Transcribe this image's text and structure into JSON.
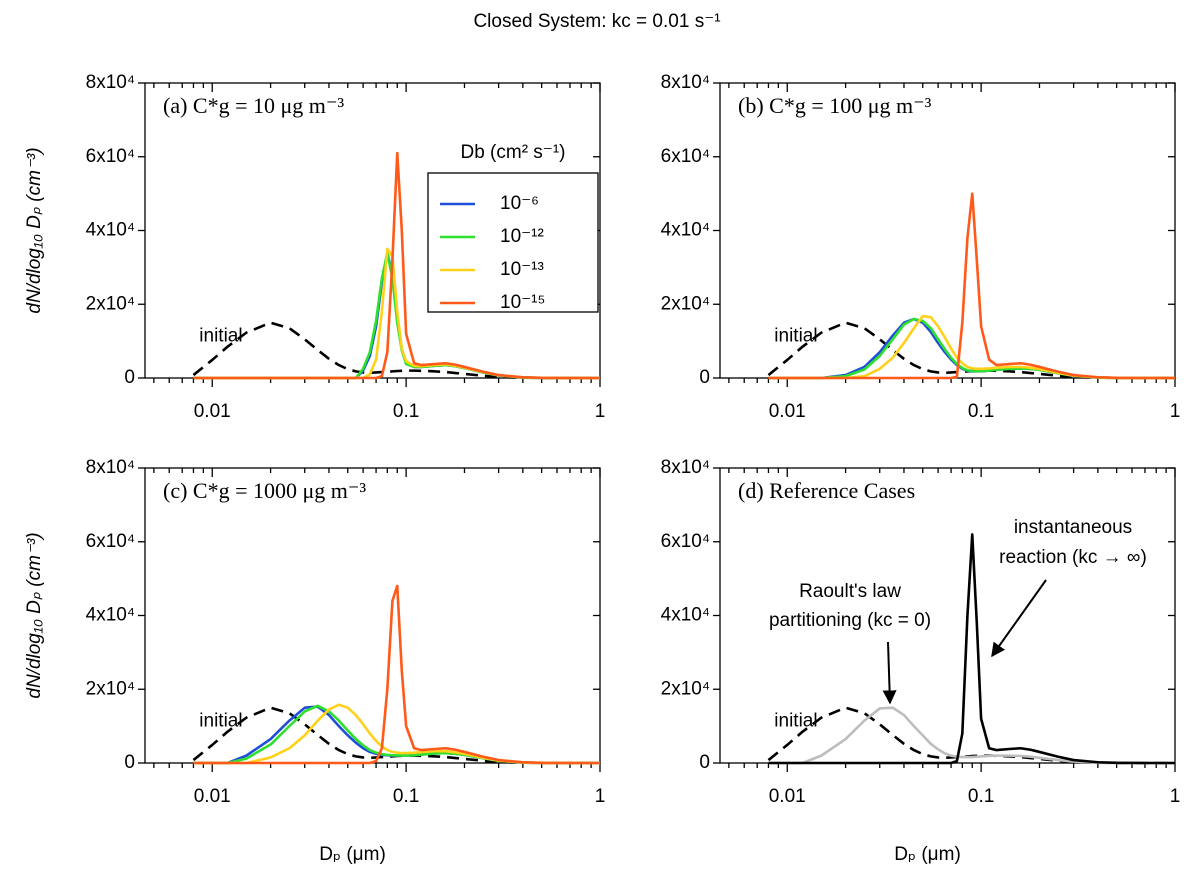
{
  "title": "Closed System: kc = 0.01 s⁻¹",
  "chart_data": [
    {
      "type": "line",
      "xscale": "log",
      "label": "(a) C*g = 10 μg m⁻³",
      "ylabel": "dN/dlog₁₀ Dₚ (cm⁻³)",
      "legend": true,
      "legend_title": "Db (cm² s⁻¹)",
      "xlim": [
        0.0045,
        1
      ],
      "xticks": [
        0.01,
        0.1,
        1
      ],
      "xminorticks": [
        0.005,
        0.006,
        0.007,
        0.008,
        0.009,
        0.02,
        0.03,
        0.04,
        0.05,
        0.06,
        0.07,
        0.08,
        0.09,
        0.2,
        0.3,
        0.4,
        0.5,
        0.6,
        0.7,
        0.8,
        0.9
      ],
      "ylim": [
        0,
        80000
      ],
      "yticks": [
        0,
        {
          "value": 20000,
          "label": "2x10⁴"
        },
        {
          "value": 40000,
          "label": "4x10⁴"
        },
        {
          "value": 60000,
          "label": "6x10⁴"
        },
        {
          "value": 80000,
          "label": "8x10⁴"
        }
      ],
      "x": [
        0.008,
        0.01,
        0.012,
        0.015,
        0.02,
        0.025,
        0.03,
        0.035,
        0.04,
        0.045,
        0.05,
        0.055,
        0.06,
        0.065,
        0.07,
        0.075,
        0.08,
        0.085,
        0.09,
        0.095,
        0.1,
        0.11,
        0.12,
        0.14,
        0.16,
        0.18,
        0.2,
        0.25,
        0.3,
        0.4,
        0.5,
        0.7,
        1
      ],
      "series": [
        {
          "name": "initial",
          "color": "#000000",
          "dash": true,
          "values": [
            800,
            4900,
            8500,
            12300,
            15000,
            13500,
            10500,
            7600,
            5200,
            3500,
            2400,
            1800,
            1500,
            1400,
            1500,
            1600,
            1700,
            1800,
            1900,
            1950,
            2000,
            2000,
            1950,
            1800,
            1600,
            1350,
            1100,
            600,
            300,
            80,
            20,
            0,
            0
          ]
        },
        {
          "name": "10⁻⁶",
          "color": "#1f4ed8",
          "values": [
            0,
            0,
            0,
            0,
            0,
            0,
            0,
            0,
            0,
            0,
            0,
            0,
            2000,
            6000,
            14000,
            26000,
            34000,
            28000,
            16000,
            8000,
            4000,
            3000,
            3000,
            3300,
            3500,
            3200,
            2700,
            1500,
            700,
            150,
            30,
            0,
            0
          ]
        },
        {
          "name": "10⁻¹²",
          "color": "#2ee02e",
          "values": [
            0,
            0,
            0,
            0,
            0,
            0,
            0,
            0,
            0,
            0,
            0,
            0,
            2500,
            7000,
            15500,
            27000,
            34000,
            27000,
            15000,
            7500,
            3800,
            3000,
            3000,
            3300,
            3500,
            3200,
            2700,
            1500,
            700,
            150,
            30,
            0,
            0
          ]
        },
        {
          "name": "10⁻¹³",
          "color": "#ffd11a",
          "values": [
            0,
            0,
            0,
            0,
            0,
            0,
            0,
            0,
            0,
            0,
            0,
            0,
            0,
            1000,
            5000,
            18000,
            35000,
            33000,
            18000,
            8000,
            4500,
            3300,
            3200,
            3500,
            3700,
            3300,
            2800,
            1600,
            750,
            170,
            35,
            0,
            0
          ]
        },
        {
          "name": "10⁻¹⁵",
          "color": "#ff5a1a",
          "values": [
            0,
            0,
            0,
            0,
            0,
            0,
            0,
            0,
            0,
            0,
            0,
            0,
            0,
            0,
            0,
            500,
            7000,
            32000,
            61000,
            40000,
            12000,
            4000,
            3500,
            3800,
            4000,
            3600,
            3000,
            1700,
            800,
            200,
            40,
            0,
            0
          ]
        }
      ]
    },
    {
      "type": "line",
      "xscale": "log",
      "label": "(b) C*g = 100 μg m⁻³",
      "xlim": [
        0.0045,
        1
      ],
      "xticks": [
        0.01,
        0.1,
        1
      ],
      "xminorticks": [
        0.005,
        0.006,
        0.007,
        0.008,
        0.009,
        0.02,
        0.03,
        0.04,
        0.05,
        0.06,
        0.07,
        0.08,
        0.09,
        0.2,
        0.3,
        0.4,
        0.5,
        0.6,
        0.7,
        0.8,
        0.9
      ],
      "ylim": [
        0,
        80000
      ],
      "yticks": [
        0,
        {
          "value": 20000,
          "label": "2x10⁴"
        },
        {
          "value": 40000,
          "label": "4x10⁴"
        },
        {
          "value": 60000,
          "label": "6x10⁴"
        },
        {
          "value": 80000,
          "label": "8x10⁴"
        }
      ],
      "x": [
        0.008,
        0.01,
        0.012,
        0.015,
        0.02,
        0.025,
        0.03,
        0.035,
        0.04,
        0.045,
        0.05,
        0.055,
        0.06,
        0.065,
        0.07,
        0.075,
        0.08,
        0.085,
        0.09,
        0.095,
        0.1,
        0.11,
        0.12,
        0.14,
        0.16,
        0.18,
        0.2,
        0.25,
        0.3,
        0.4,
        0.5,
        0.7,
        1
      ],
      "series": [
        {
          "name": "initial",
          "color": "#000000",
          "dash": true,
          "values": [
            800,
            4900,
            8500,
            12300,
            15000,
            13500,
            10500,
            7600,
            5200,
            3500,
            2400,
            1800,
            1500,
            1400,
            1500,
            1600,
            1700,
            1800,
            1900,
            1950,
            2000,
            2000,
            1950,
            1800,
            1600,
            1350,
            1100,
            600,
            300,
            80,
            20,
            0,
            0
          ]
        },
        {
          "color": "#1f4ed8",
          "values": [
            0,
            0,
            0,
            0,
            800,
            3000,
            7000,
            11500,
            15000,
            16000,
            15000,
            12500,
            9500,
            7000,
            5000,
            3500,
            2500,
            2000,
            1800,
            1800,
            1800,
            2000,
            2200,
            2500,
            2600,
            2500,
            2200,
            1300,
            600,
            150,
            30,
            0,
            0
          ]
        },
        {
          "color": "#2ee02e",
          "values": [
            0,
            0,
            0,
            0,
            500,
            2300,
            6000,
            10500,
            14500,
            16000,
            15500,
            13500,
            10500,
            7800,
            5500,
            3800,
            2700,
            2100,
            1900,
            1850,
            1850,
            2000,
            2200,
            2500,
            2600,
            2500,
            2200,
            1300,
            600,
            150,
            30,
            0,
            0
          ]
        },
        {
          "color": "#ffd11a",
          "values": [
            0,
            0,
            0,
            0,
            0,
            500,
            2500,
            5500,
            9500,
            13500,
            16800,
            16500,
            14000,
            11000,
            8000,
            5500,
            4000,
            3000,
            2600,
            2500,
            2500,
            2600,
            2800,
            3000,
            3000,
            2800,
            2400,
            1400,
            650,
            150,
            30,
            0,
            0
          ]
        },
        {
          "color": "#ff5a1a",
          "values": [
            0,
            0,
            0,
            0,
            0,
            0,
            0,
            0,
            0,
            0,
            0,
            0,
            0,
            0,
            0,
            300,
            15000,
            38000,
            50000,
            32000,
            14000,
            5000,
            3500,
            3800,
            4000,
            3600,
            3000,
            1700,
            800,
            200,
            40,
            0,
            0
          ]
        }
      ]
    },
    {
      "type": "line",
      "xscale": "log",
      "label": "(c) C*g = 1000 μg m⁻³",
      "ylabel": "dN/dlog₁₀ Dₚ (cm⁻³)",
      "xlabel": "Dₚ (μm)",
      "xlim": [
        0.0045,
        1
      ],
      "xticks": [
        0.01,
        0.1,
        1
      ],
      "xminorticks": [
        0.005,
        0.006,
        0.007,
        0.008,
        0.009,
        0.02,
        0.03,
        0.04,
        0.05,
        0.06,
        0.07,
        0.08,
        0.09,
        0.2,
        0.3,
        0.4,
        0.5,
        0.6,
        0.7,
        0.8,
        0.9
      ],
      "ylim": [
        0,
        80000
      ],
      "yticks": [
        0,
        {
          "value": 20000,
          "label": "2x10⁴"
        },
        {
          "value": 40000,
          "label": "4x10⁴"
        },
        {
          "value": 60000,
          "label": "6x10⁴"
        },
        {
          "value": 80000,
          "label": "8x10⁴"
        }
      ],
      "x": [
        0.008,
        0.01,
        0.012,
        0.015,
        0.02,
        0.025,
        0.03,
        0.035,
        0.04,
        0.045,
        0.05,
        0.055,
        0.06,
        0.065,
        0.07,
        0.075,
        0.08,
        0.085,
        0.09,
        0.095,
        0.1,
        0.11,
        0.12,
        0.14,
        0.16,
        0.18,
        0.2,
        0.25,
        0.3,
        0.4,
        0.5,
        0.7,
        1
      ],
      "series": [
        {
          "name": "initial",
          "color": "#000000",
          "dash": true,
          "values": [
            800,
            4900,
            8500,
            12300,
            15000,
            13500,
            10500,
            7600,
            5200,
            3500,
            2400,
            1800,
            1500,
            1400,
            1500,
            1600,
            1700,
            1800,
            1900,
            1950,
            2000,
            2000,
            1950,
            1800,
            1600,
            1350,
            1100,
            600,
            300,
            80,
            20,
            0,
            0
          ]
        },
        {
          "color": "#1f4ed8",
          "values": [
            0,
            0,
            0,
            2000,
            6500,
            11500,
            15000,
            15300,
            13000,
            10000,
            7500,
            5500,
            4000,
            3000,
            2500,
            2200,
            2100,
            2000,
            2000,
            2000,
            2000,
            2100,
            2300,
            2600,
            2700,
            2500,
            2200,
            1300,
            600,
            150,
            30,
            0,
            0
          ]
        },
        {
          "color": "#2ee02e",
          "values": [
            0,
            0,
            0,
            1200,
            5000,
            10000,
            14000,
            15500,
            14000,
            11500,
            8800,
            6500,
            4800,
            3500,
            2800,
            2400,
            2200,
            2100,
            2050,
            2000,
            2000,
            2100,
            2300,
            2600,
            2700,
            2500,
            2200,
            1300,
            600,
            150,
            30,
            0,
            0
          ]
        },
        {
          "color": "#ffd11a",
          "values": [
            0,
            0,
            0,
            0,
            1500,
            4000,
            7500,
            11500,
            14500,
            15800,
            15000,
            13000,
            10500,
            8000,
            6000,
            4500,
            3500,
            3000,
            2800,
            2700,
            2700,
            2800,
            3000,
            3200,
            3200,
            2900,
            2500,
            1400,
            650,
            150,
            30,
            0,
            0
          ]
        },
        {
          "color": "#ff5a1a",
          "values": [
            0,
            0,
            0,
            0,
            0,
            0,
            0,
            0,
            0,
            0,
            0,
            0,
            0,
            0,
            500,
            4000,
            20000,
            44000,
            48000,
            25000,
            10000,
            4000,
            3500,
            3800,
            4000,
            3600,
            3000,
            1700,
            800,
            200,
            40,
            0,
            0
          ]
        }
      ]
    },
    {
      "type": "line",
      "xscale": "log",
      "label": "(d) Reference Cases",
      "xlabel": "Dₚ (μm)",
      "annotations": [
        [
          "Raoult's law",
          "partitioning (kc = 0)"
        ],
        [
          "instantaneous",
          "reaction (kc → ∞)"
        ]
      ],
      "xlim": [
        0.0045,
        1
      ],
      "xticks": [
        0.01,
        0.1,
        1
      ],
      "xminorticks": [
        0.005,
        0.006,
        0.007,
        0.008,
        0.009,
        0.02,
        0.03,
        0.04,
        0.05,
        0.06,
        0.07,
        0.08,
        0.09,
        0.2,
        0.3,
        0.4,
        0.5,
        0.6,
        0.7,
        0.8,
        0.9
      ],
      "ylim": [
        0,
        80000
      ],
      "yticks": [
        0,
        {
          "value": 20000,
          "label": "2x10⁴"
        },
        {
          "value": 40000,
          "label": "4x10⁴"
        },
        {
          "value": 60000,
          "label": "6x10⁴"
        },
        {
          "value": 80000,
          "label": "8x10⁴"
        }
      ],
      "x": [
        0.008,
        0.01,
        0.012,
        0.015,
        0.02,
        0.025,
        0.03,
        0.035,
        0.04,
        0.045,
        0.05,
        0.055,
        0.06,
        0.065,
        0.07,
        0.075,
        0.08,
        0.085,
        0.09,
        0.095,
        0.1,
        0.11,
        0.12,
        0.14,
        0.16,
        0.18,
        0.2,
        0.25,
        0.3,
        0.4,
        0.5,
        0.7,
        1
      ],
      "series": [
        {
          "name": "initial",
          "color": "#000000",
          "dash": true,
          "values": [
            800,
            4900,
            8500,
            12300,
            15000,
            13500,
            10500,
            7600,
            5200,
            3500,
            2400,
            1800,
            1500,
            1400,
            1500,
            1600,
            1700,
            1800,
            1900,
            1950,
            2000,
            2000,
            1950,
            1800,
            1600,
            1350,
            1100,
            600,
            300,
            80,
            20,
            0,
            0
          ]
        },
        {
          "color": "#bdbdbd",
          "values": [
            0,
            0,
            0,
            2000,
            6500,
            11500,
            14800,
            15000,
            13000,
            10000,
            7500,
            5200,
            3700,
            2600,
            2000,
            1700,
            1600,
            1600,
            1600,
            1700,
            1800,
            1900,
            2000,
            2000,
            1900,
            1700,
            1400,
            800,
            400,
            100,
            20,
            0,
            0
          ]
        },
        {
          "color": "#000000",
          "values": [
            0,
            0,
            0,
            0,
            0,
            0,
            0,
            0,
            0,
            0,
            0,
            0,
            0,
            0,
            0,
            500,
            8000,
            40000,
            62000,
            38000,
            12000,
            4000,
            3500,
            3800,
            4000,
            3600,
            3000,
            1700,
            800,
            200,
            40,
            0,
            0
          ]
        }
      ]
    }
  ]
}
